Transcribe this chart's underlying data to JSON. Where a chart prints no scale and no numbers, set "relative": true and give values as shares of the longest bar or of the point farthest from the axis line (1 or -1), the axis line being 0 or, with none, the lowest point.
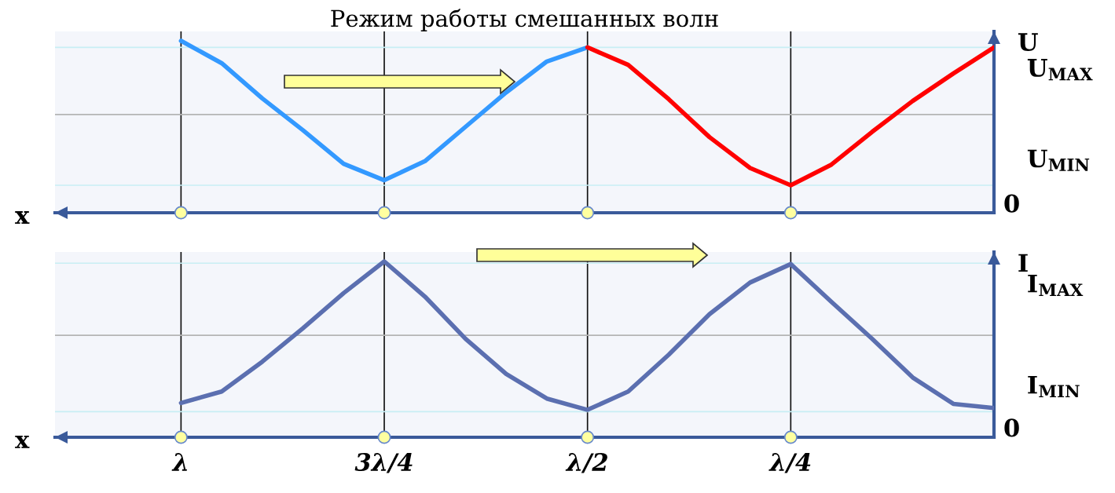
{
  "chart_data": [
    {
      "type": "line",
      "title": "Режим работы смешанных волн",
      "xlabel": "x",
      "ylabel": "U",
      "relative": true,
      "categories": [
        null,
        null,
        null,
        null,
        null,
        null,
        null,
        null,
        null,
        null,
        null,
        null,
        null,
        null,
        null,
        null,
        null,
        null,
        null,
        null,
        null
      ],
      "grid": "x",
      "marker": "none",
      "line_style": "solid",
      "series": [
        {
          "color": "#3399ff",
          "values": [
            1.0,
            0.87,
            0.665,
            0.48,
            0.285,
            0.189,
            0.3,
            0.5,
            0.7,
            0.88,
            0.962,
            null,
            null,
            null,
            null,
            null,
            null,
            null,
            null,
            null,
            null
          ]
        },
        {
          "color": "#ff0000",
          "values": [
            null,
            null,
            null,
            null,
            null,
            null,
            null,
            null,
            null,
            null,
            0.962,
            0.86,
            0.66,
            0.44,
            0.26,
            0.16,
            0.28,
            0.47,
            0.65,
            0.81,
            0.962
          ]
        }
      ],
      "ref_lines": [
        {
          "axis": "y",
          "value": 0.962,
          "label": "U$_{MAX}$",
          "color": "#c8eef4"
        },
        {
          "axis": "y",
          "value": 0.571,
          "color": "#b4b4b4"
        },
        {
          "axis": "y",
          "value": 0.16,
          "label": "U$_{MIN}$",
          "color": "#c8eef4"
        }
      ],
      "annotations": [
        "0"
      ]
    },
    {
      "type": "line",
      "xlabel": "x",
      "ylabel": "I",
      "relative": true,
      "categories": [
        "λ",
        null,
        null,
        null,
        null,
        "3λ/4",
        null,
        null,
        null,
        null,
        "λ/2",
        null,
        null,
        null,
        null,
        "λ/4",
        null,
        null,
        null,
        null,
        null
      ],
      "tick_labels": "x",
      "grid": "x",
      "marker": "none",
      "line_style": "solid",
      "series": [
        {
          "color": "#5b6fb0",
          "values": [
            0.195,
            0.26,
            0.43,
            0.62,
            0.82,
            1.0,
            0.8,
            0.56,
            0.36,
            0.22,
            0.156,
            0.26,
            0.47,
            0.7,
            0.88,
            0.985,
            0.77,
            0.56,
            0.34,
            0.19,
            0.166
          ]
        }
      ],
      "ref_lines": [
        {
          "axis": "y",
          "value": 0.99,
          "label": "I$_{MAX}$",
          "color": "#c8eef4"
        },
        {
          "axis": "y",
          "value": 0.58,
          "color": "#b4b4b4"
        },
        {
          "axis": "y",
          "value": 0.146,
          "label": "I$_{MIN}$",
          "color": "#c8eef4"
        }
      ],
      "annotations": [
        "0"
      ]
    }
  ]
}
